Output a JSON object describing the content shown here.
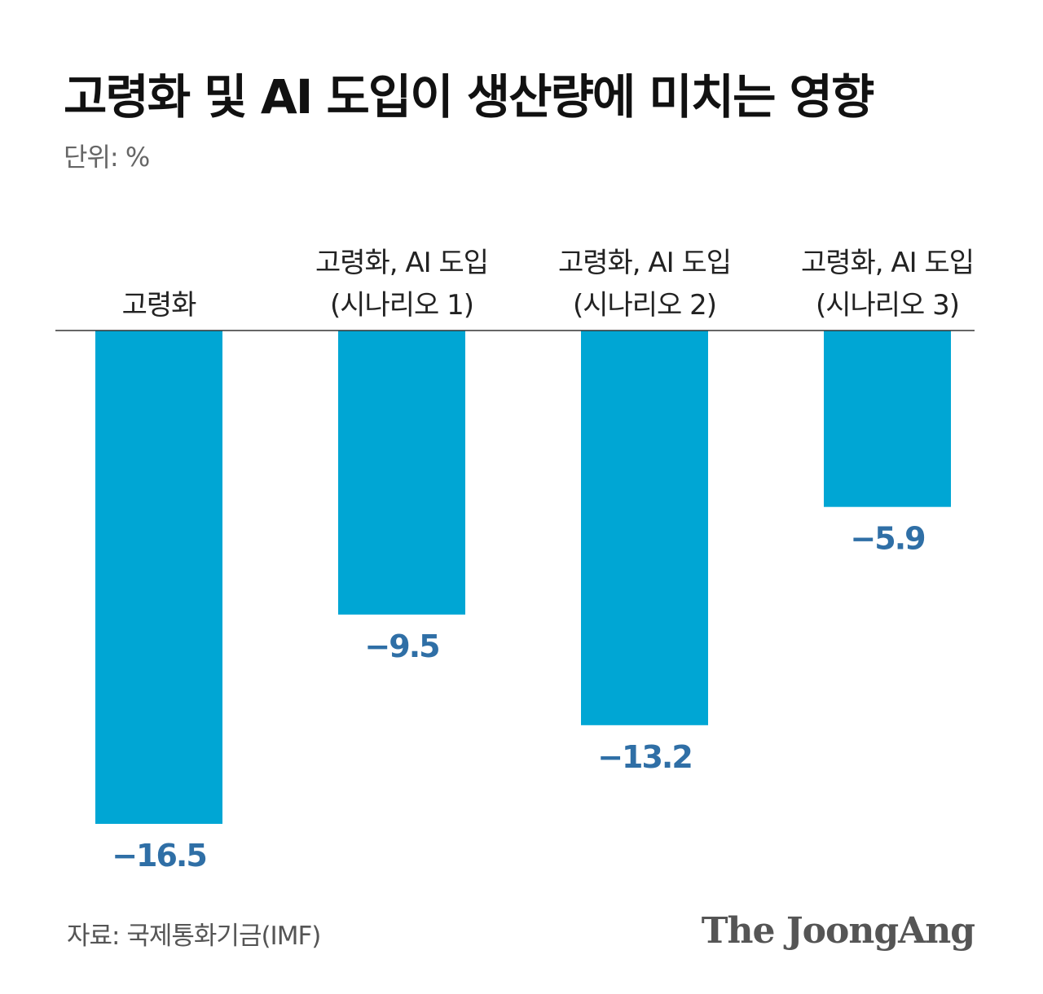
{
  "title": "고령화 및 AI 도입이 생산량에 미치는 영향",
  "unit_label": "단위: %",
  "source": "자료: 국제통화기금(IMF)",
  "logo": "The JoongAng",
  "colors": {
    "bar": "#00a6d4",
    "value_label": "#2f6fa6",
    "baseline": "#333333"
  },
  "chart_data": {
    "type": "bar",
    "title": "고령화 및 AI 도입이 생산량에 미치는 영향",
    "unit": "단위: %",
    "categories": [
      [
        "고령화"
      ],
      [
        "고령화, AI 도입",
        "(시나리오 1)"
      ],
      [
        "고령화, AI 도입",
        "(시나리오 2)"
      ],
      [
        "고령화, AI 도입",
        "(시나리오 3)"
      ]
    ],
    "values": [
      -16.5,
      -9.5,
      -13.2,
      -5.9
    ],
    "value_labels": [
      "−16.5",
      "−9.5",
      "−13.2",
      "−5.9"
    ],
    "ylim": [
      -16.5,
      0
    ],
    "grid": false,
    "legend": "none"
  }
}
